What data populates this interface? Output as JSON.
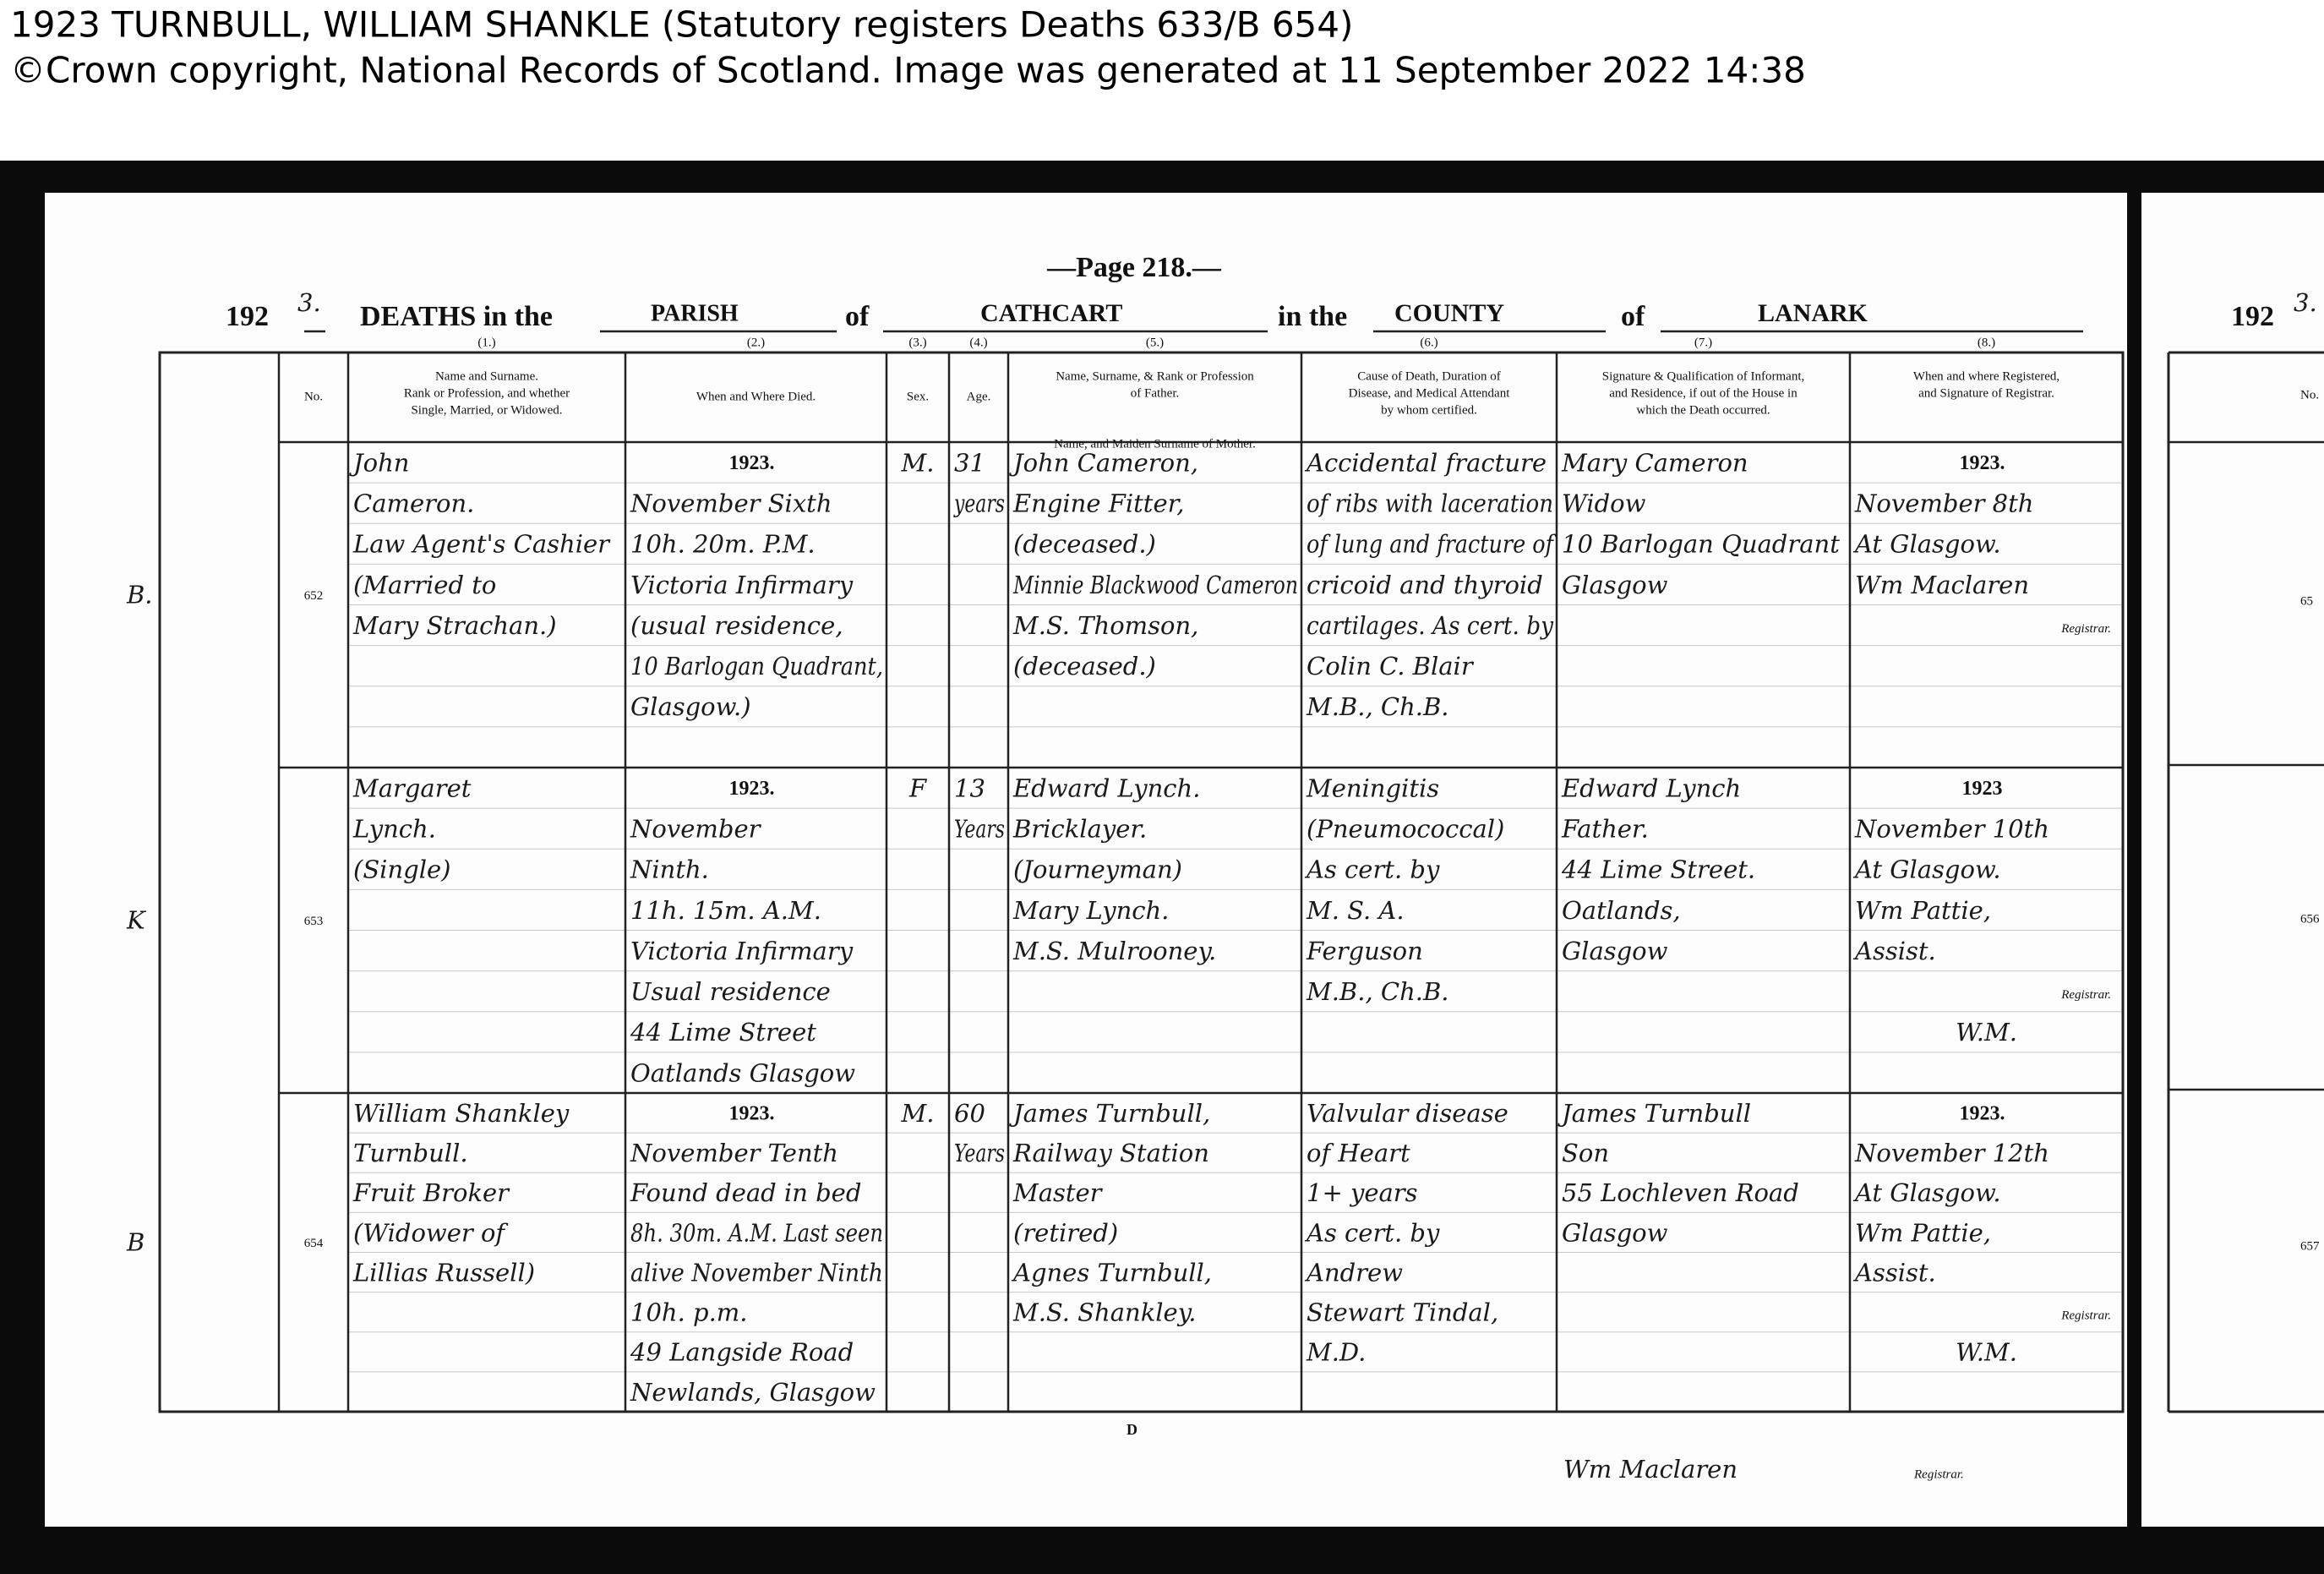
{
  "header": {
    "title": "1923 TURNBULL, WILLIAM SHANKLE (Statutory registers Deaths 633/B  654)",
    "copyright": "©Crown copyright, National Records of Scotland. Image was generated at  11 September 2022 14:38"
  },
  "register": {
    "page": "—Page 218.—",
    "year_prefix": "192",
    "year_digit": "3.",
    "title": {
      "deaths": "DEATHS in the",
      "parish_label": "PARISH",
      "of_1": "of",
      "parish": "CATHCART",
      "in_the": "in the",
      "county_label": "COUNTY",
      "of_2": "of",
      "county": "LANARK"
    },
    "column_numbers": [
      "(1.)",
      "(2.)",
      "(3.)",
      "(4.)",
      "(5.)",
      "(6.)",
      "(7.)",
      "(8.)"
    ],
    "columns": [
      [
        "No."
      ],
      [
        "Name and Surname.",
        "Rank or Profession, and whether",
        "Single, Married, or Widowed."
      ],
      [
        "When and Where Died."
      ],
      [
        "Sex."
      ],
      [
        "Age."
      ],
      [
        "Name, Surname, & Rank or Profession",
        "of Father.",
        "Name, and Maiden Surname of Mother."
      ],
      [
        "Cause of Death, Duration of",
        "Disease, and Medical Attendant",
        "by whom certified."
      ],
      [
        "Signature & Qualification of Informant,",
        "and Residence, if out of the House in",
        "which the Death occurred."
      ],
      [
        "When and where Registered,",
        "and Signature of Registrar."
      ]
    ],
    "entries": [
      {
        "margin": "B.",
        "no": "652",
        "name": [
          "John",
          "Cameron.",
          "Law Agent's Cashier",
          "(Married to",
          "Mary Strachan.)"
        ],
        "when_where": [
          "1923.",
          "November Sixth",
          "10h. 20m. P.M.",
          "Victoria Infirmary",
          "(usual residence,",
          "10 Barlogan Quadrant,",
          "Glasgow.)"
        ],
        "sex": "M.",
        "age": [
          "31",
          "years"
        ],
        "parents": [
          "John Cameron,",
          "Engine Fitter,",
          "(deceased.)",
          "Minnie Blackwood Cameron",
          "M.S. Thomson,",
          "(deceased.)"
        ],
        "cause": [
          "Accidental fracture",
          "of ribs with laceration",
          "of lung and fracture of",
          "cricoid and thyroid",
          "cartilages. As cert. by",
          "Colin C. Blair",
          "M.B., Ch.B."
        ],
        "informant": [
          "Mary Cameron",
          "Widow",
          "10 Barlogan Quadrant",
          "Glasgow"
        ],
        "registered": [
          "1923.",
          "November 8th",
          "At Glasgow.",
          "Wm Maclaren"
        ],
        "registrar_label": "Registrar."
      },
      {
        "margin": "K",
        "no": "653",
        "name": [
          "Margaret",
          "Lynch.",
          "(Single)"
        ],
        "when_where": [
          "1923.",
          "November",
          "Ninth.",
          "11h. 15m. A.M.",
          "Victoria Infirmary",
          "Usual residence",
          "44 Lime Street",
          "Oatlands Glasgow"
        ],
        "sex": "F",
        "age": [
          "13",
          "Years"
        ],
        "parents": [
          "Edward Lynch.",
          "Bricklayer.",
          "(Journeyman)",
          "Mary Lynch.",
          "M.S. Mulrooney."
        ],
        "cause": [
          "Meningitis",
          "(Pneumococcal)",
          "As cert. by",
          "M. S. A.",
          "Ferguson",
          "M.B., Ch.B."
        ],
        "informant": [
          "Edward Lynch",
          "Father.",
          "44 Lime Street.",
          "Oatlands,",
          "Glasgow"
        ],
        "registered": [
          "1923",
          "November 10th",
          "At Glasgow.",
          "Wm Pattie,",
          "Assist."
        ],
        "registrar_label": "Registrar.",
        "initials": "W.M."
      },
      {
        "margin": "B",
        "no": "654",
        "name": [
          "William Shankley",
          "Turnbull.",
          "Fruit Broker",
          "(Widower of",
          "Lillias Russell)"
        ],
        "when_where": [
          "1923.",
          "November Tenth",
          "Found dead in bed",
          "8h. 30m. A.M. Last seen",
          "alive November Ninth",
          "10h. p.m.",
          "49 Langside Road",
          "Newlands, Glasgow"
        ],
        "sex": "M.",
        "age": [
          "60",
          "Years"
        ],
        "parents": [
          "James Turnbull,",
          "Railway Station",
          "Master",
          "(retired)",
          "Agnes Turnbull,",
          "M.S. Shankley."
        ],
        "cause": [
          "Valvular disease",
          "of Heart",
          "1+ years",
          "As cert. by",
          "Andrew",
          "Stewart Tindal,",
          "M.D."
        ],
        "informant": [
          "James Turnbull",
          "Son",
          "55 Lochleven Road",
          "Glasgow"
        ],
        "registered": [
          "1923.",
          "November 12th",
          "At Glasgow.",
          "Wm Pattie,",
          "Assist."
        ],
        "registrar_label": "Registrar.",
        "initials": "W.M."
      }
    ]
  },
  "footer": {
    "mark": "D",
    "signature": "Wm Maclaren",
    "role": "Registrar."
  },
  "next_page": {
    "year_prefix": "192",
    "year_digit": "3.",
    "column": "No.",
    "numbers": [
      "65",
      "656",
      "657"
    ]
  }
}
